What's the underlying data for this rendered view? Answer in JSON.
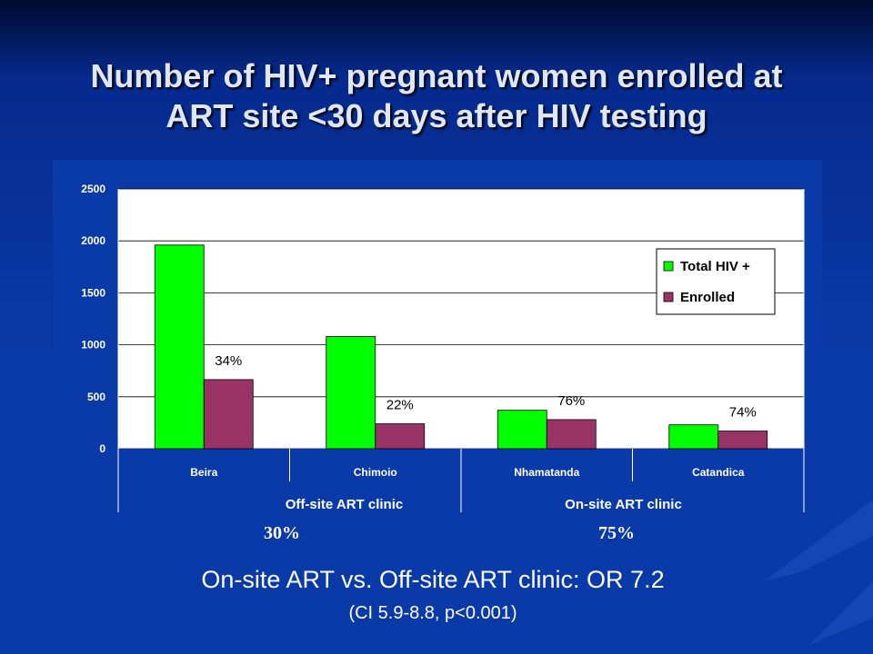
{
  "slide": {
    "title_line1": "Number of HIV+ pregnant women enrolled at",
    "title_line2": "ART site <30 days after HIV testing",
    "summary_or": "On-site ART vs. Off-site ART clinic: OR 7.2",
    "summary_ci": "(CI 5.9-8.8, p<0.001)"
  },
  "groups": [
    {
      "name": "Off-site ART clinic",
      "overall_pct": "30%"
    },
    {
      "name": "On-site ART clinic",
      "overall_pct": "75%"
    }
  ],
  "chart_data": {
    "type": "bar",
    "title": "",
    "xlabel": "",
    "ylabel": "",
    "categories": [
      "Beira",
      "Chimoio",
      "Nhamatanda",
      "Catandica"
    ],
    "series": [
      {
        "name": "Total HIV +",
        "color": "#00ff00",
        "values": [
          1960,
          1080,
          370,
          230
        ]
      },
      {
        "name": "Enrolled",
        "color": "#993366",
        "values": [
          665,
          240,
          280,
          170
        ]
      }
    ],
    "bar_labels": [
      "34%",
      "22%",
      "76%",
      "74%"
    ],
    "ylim": [
      0,
      2500
    ],
    "yticks": [
      0,
      500,
      1000,
      1500,
      2000,
      2500
    ],
    "grid": true,
    "legend_position": "right"
  }
}
